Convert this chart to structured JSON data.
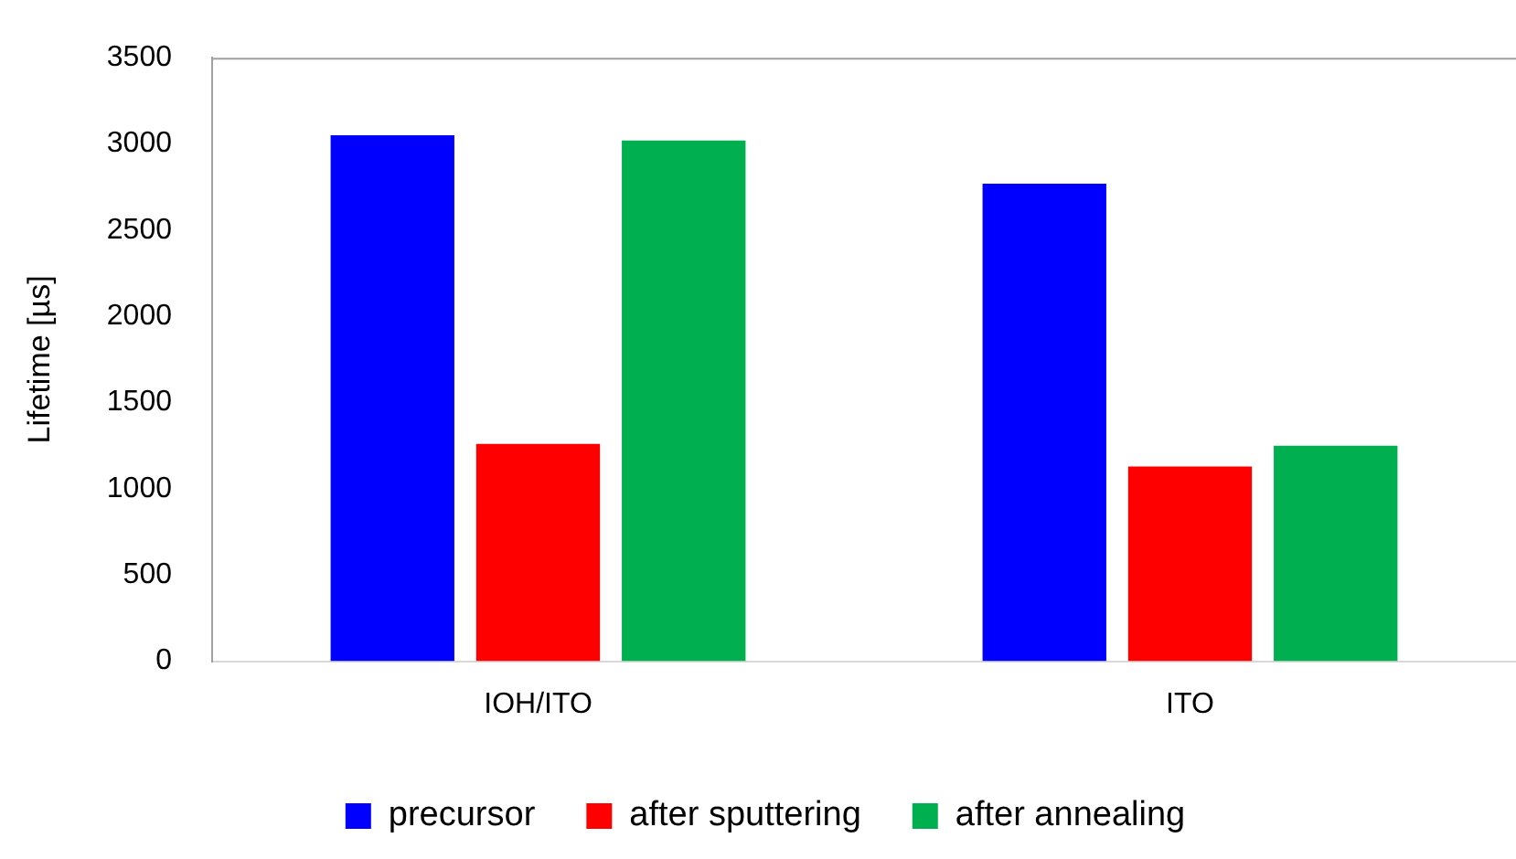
{
  "chart_data": {
    "type": "bar",
    "ylabel": "Lifetime [µs]",
    "categories": [
      "IOH/ITO",
      "ITO"
    ],
    "series": [
      {
        "name": "precursor",
        "color": "#0000ff",
        "values": [
          3050,
          2770
        ]
      },
      {
        "name": "after sputtering",
        "color": "#ff0000",
        "values": [
          1260,
          1130
        ]
      },
      {
        "name": "after annealing",
        "color": "#00b050",
        "values": [
          3020,
          1250
        ]
      }
    ],
    "ylim": [
      0,
      3500
    ],
    "yticks": [
      0,
      500,
      1000,
      1500,
      2000,
      2500,
      3000,
      3500
    ],
    "grid": false,
    "legend": "bottom"
  }
}
